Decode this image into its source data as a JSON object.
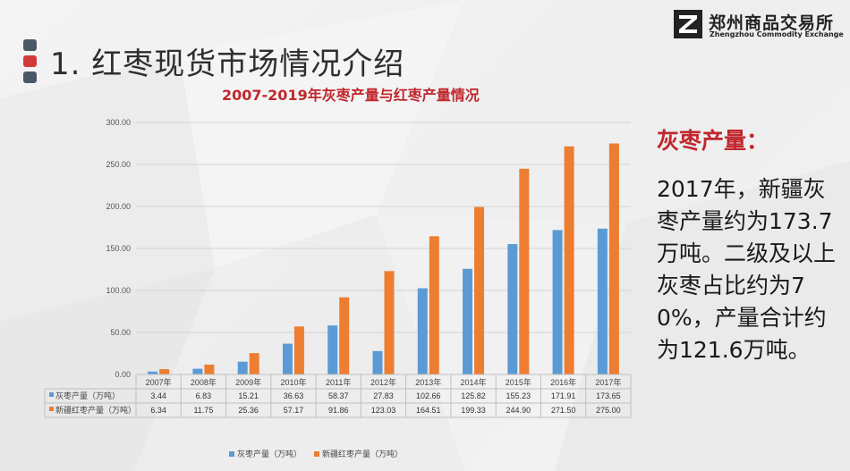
{
  "header": {
    "title": "1. 红枣现货市场情况介绍",
    "logo_cn": "郑州商品交易所",
    "logo_en": "Zhengzhou Commodity Exchange"
  },
  "sidebar_text": {
    "heading": "灰枣产量：",
    "body": "2017年，新疆灰枣产量约为173.7万吨。二级及以上灰枣占比约为70%，产量合计约为121.6万吨。"
  },
  "colors": {
    "series1": "#5b9bd5",
    "series2": "#ed7d31",
    "title_red": "#c0272d"
  },
  "chart_data": {
    "type": "bar",
    "title": "2007-2019年灰枣产量与红枣产量情况",
    "categories": [
      "2007年",
      "2008年",
      "2009年",
      "2010年",
      "2011年",
      "2012年",
      "2013年",
      "2014年",
      "2015年",
      "2016年",
      "2017年"
    ],
    "series": [
      {
        "name": "灰枣产量（万吨）",
        "values": [
          3.44,
          6.83,
          15.21,
          36.63,
          58.37,
          27.83,
          102.66,
          125.82,
          155.23,
          171.91,
          173.65
        ],
        "labels": [
          "3.44",
          "6.83",
          "15.21",
          "36.63",
          "58.37",
          "27.83",
          "102.66",
          "125.82",
          "155.23",
          "171.91",
          "173.65"
        ]
      },
      {
        "name": "新疆红枣产量（万吨）",
        "values": [
          6.34,
          11.75,
          25.36,
          57.17,
          91.86,
          123.03,
          164.51,
          199.33,
          244.9,
          271.5,
          275.0
        ],
        "labels": [
          "6.34",
          "11.75",
          "25.36",
          "57.17",
          "91.86",
          "123.03",
          "164.51",
          "199.33",
          "244.90",
          "271.50",
          "275.00"
        ]
      }
    ],
    "ylim": [
      0,
      300
    ],
    "yticks": [
      "0.00",
      "50.00",
      "100.00",
      "150.00",
      "200.00",
      "250.00",
      "300.00"
    ],
    "grid": true,
    "legend_position": "bottom",
    "data_table": true
  }
}
